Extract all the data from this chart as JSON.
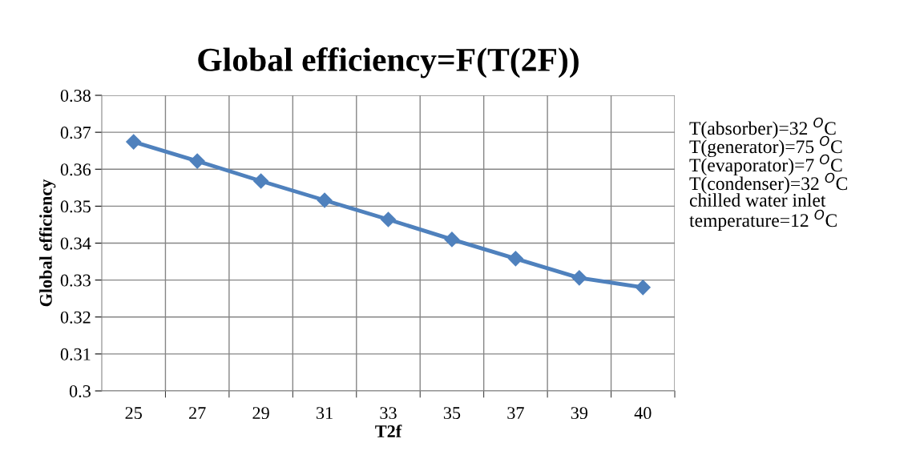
{
  "chart_data": {
    "type": "line",
    "title": "Global efficiency=F(T(2F))",
    "xlabel": "T2f",
    "ylabel": "Global efficiency",
    "categories": [
      "25",
      "27",
      "29",
      "31",
      "33",
      "35",
      "37",
      "39",
      "40"
    ],
    "series": [
      {
        "color": "#4f81bd",
        "values": [
          0.3674,
          0.3622,
          0.3568,
          0.3516,
          0.3464,
          0.341,
          0.3358,
          0.3306,
          0.328
        ]
      }
    ],
    "ylim": [
      0.3,
      0.38
    ],
    "yticks": [
      {
        "value": 0.3,
        "label": "0.3"
      },
      0.31,
      0.32,
      0.33,
      0.34,
      0.35,
      0.36,
      0.37,
      0.38
    ],
    "grid": true,
    "marker": "diamond",
    "line_style": "solid",
    "annotations": [
      "T(absorber)=32 $^{O}$C",
      "T(generator)=75 $^{O}$C",
      "T(evaporator)=7 $^{O}$C",
      "T(condenser)=32 $^{O}$C",
      "chilled water inlet",
      "temperature=12 $^{O}$C"
    ]
  }
}
